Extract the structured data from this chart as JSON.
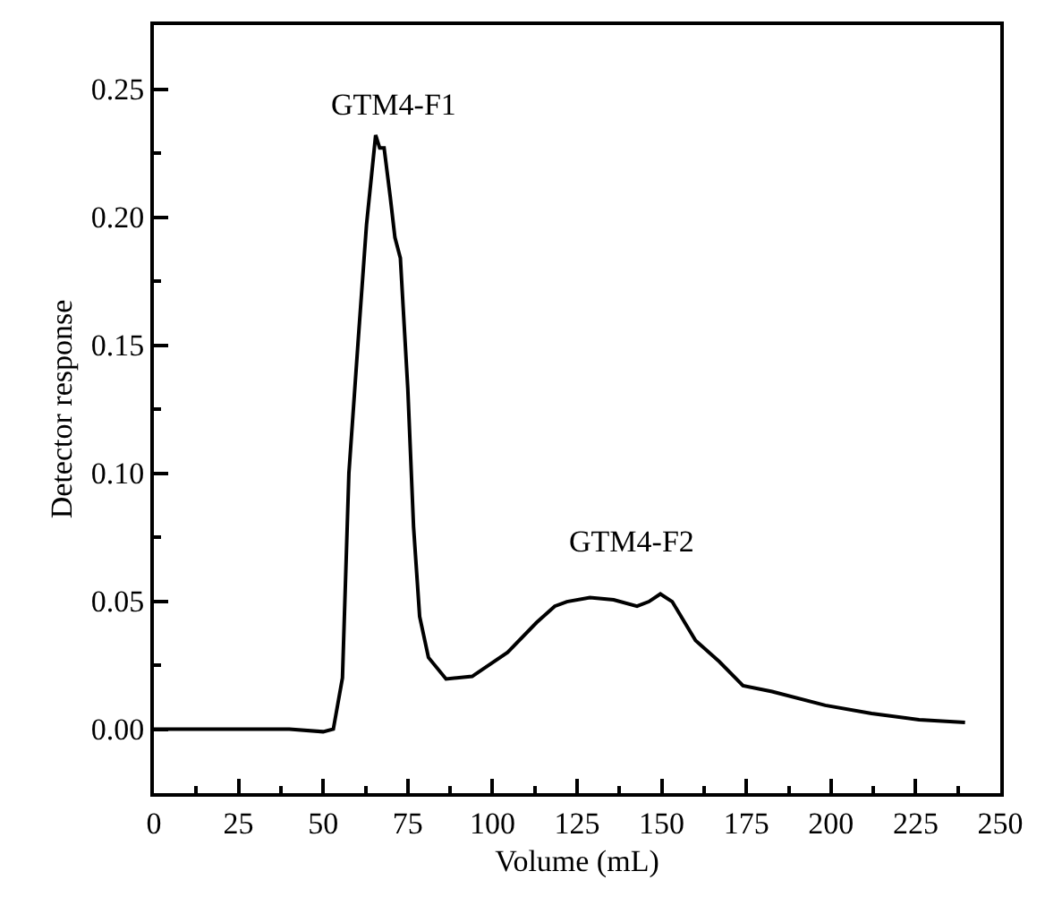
{
  "chart_data": {
    "type": "line",
    "xlabel": "Volume (mL)",
    "ylabel": "Detector response",
    "x": [
      0,
      20,
      40,
      50,
      53,
      55.7,
      57.6,
      60.3,
      62.8,
      65.5,
      66.7,
      68,
      69.8,
      71.2,
      72.8,
      75,
      76.7,
      78.5,
      81.1,
      86.3,
      94,
      104.5,
      113,
      118.4,
      122,
      128.8,
      135.8,
      142.7,
      146.2,
      149.6,
      153.1,
      160,
      167,
      174,
      182.6,
      198.3,
      212,
      226,
      239.6
    ],
    "series": [
      {
        "color": "#000000",
        "values": [
          0,
          0,
          0,
          -0.001,
          0,
          0.02,
          0.1,
          0.151,
          0.197,
          0.232,
          0.227,
          0.227,
          0.208,
          0.192,
          0.184,
          0.133,
          0.079,
          0.044,
          0.028,
          0.0196,
          0.0206,
          0.03,
          0.0416,
          0.048,
          0.0498,
          0.0514,
          0.0505,
          0.048,
          0.0498,
          0.0528,
          0.0498,
          0.0346,
          0.0264,
          0.017,
          0.0147,
          0.0093,
          0.0061,
          0.0037,
          0.0026
        ]
      }
    ],
    "xlim": [
      0,
      250
    ],
    "xticks": [
      0,
      {
        "value": 12.5,
        "label": null
      },
      25,
      {
        "value": 37.5,
        "label": null
      },
      50,
      {
        "value": 62.5,
        "label": null
      },
      75,
      {
        "value": 87.5,
        "label": null
      },
      100,
      {
        "value": 112.5,
        "label": null
      },
      125,
      {
        "value": 137.5,
        "label": null
      },
      150,
      {
        "value": 162.5,
        "label": null
      },
      175,
      {
        "value": 187.5,
        "label": null
      },
      200,
      {
        "value": 212.5,
        "label": null
      },
      225,
      {
        "value": 237.5,
        "label": null
      },
      250
    ],
    "ylim": [
      -0.025,
      0.275
    ],
    "yticks": [
      {
        "value": -0.025,
        "label": null
      },
      {
        "value": 0,
        "label": "0.00"
      },
      {
        "value": 0.025,
        "label": null
      },
      {
        "value": 0.05,
        "label": "0.05"
      },
      {
        "value": 0.075,
        "label": null
      },
      {
        "value": 0.1,
        "label": "0.10"
      },
      {
        "value": 0.125,
        "label": null
      },
      {
        "value": 0.15,
        "label": "0.15"
      },
      {
        "value": 0.175,
        "label": null
      },
      {
        "value": 0.2,
        "label": "0.20"
      },
      {
        "value": 0.225,
        "label": null
      },
      {
        "value": 0.25,
        "label": "0.25"
      }
    ],
    "annotations": [
      "GTM4-F1",
      "GTM4-F2"
    ],
    "grid": false,
    "marker": "none",
    "line_style": "solid"
  }
}
